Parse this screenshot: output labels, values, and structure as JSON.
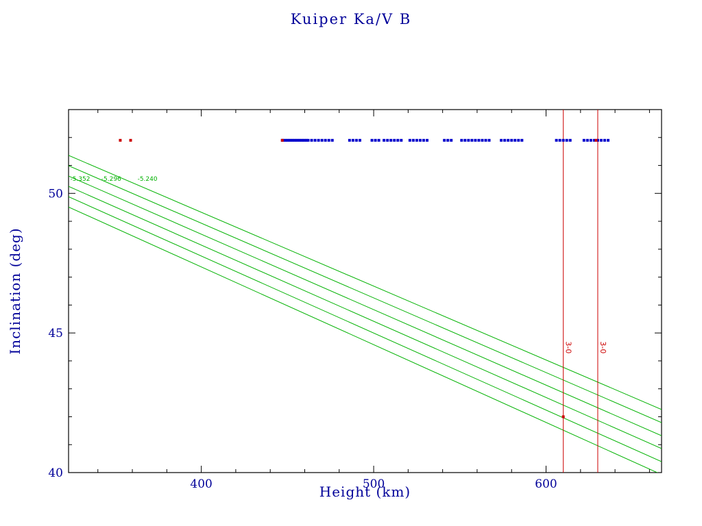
{
  "chart_data": {
    "type": "line",
    "title": "Kuiper Ka/V B",
    "xlabel": "Height (km)",
    "ylabel": "Inclination (deg)",
    "xlim": [
      323,
      667
    ],
    "ylim": [
      40,
      53
    ],
    "x_ticks": [
      400,
      500,
      600
    ],
    "y_ticks": [
      40,
      45,
      50
    ],
    "x_minor_step": 20,
    "y_minor_step": 1,
    "grid": false,
    "legend": "none",
    "colors": {
      "text": "#000099",
      "axis": "#000000",
      "green": "#00b200",
      "red": "#cc0000",
      "blue": "#0000cc"
    },
    "green_lines": [
      {
        "x": [
          323,
          667
        ],
        "y": [
          51.36,
          42.26
        ]
      },
      {
        "x": [
          323,
          667
        ],
        "y": [
          50.99,
          41.79
        ]
      },
      {
        "x": [
          323,
          667
        ],
        "y": [
          50.62,
          41.32
        ]
      },
      {
        "x": [
          323,
          667
        ],
        "y": [
          50.25,
          40.86
        ]
      },
      {
        "x": [
          323,
          667
        ],
        "y": [
          49.88,
          40.39
        ]
      },
      {
        "x": [
          323,
          667
        ],
        "y": [
          49.51,
          39.93
        ]
      }
    ],
    "line_labels": [
      {
        "text": "-5.352",
        "x": 324,
        "y": 50.45
      },
      {
        "text": "-5.296",
        "x": 342,
        "y": 50.45
      },
      {
        "text": "-5.240",
        "x": 363,
        "y": 50.45
      }
    ],
    "vertical_lines": [
      {
        "x": 610,
        "label": "3-0",
        "label_y": 44.7
      },
      {
        "x": 630,
        "label": "3-0",
        "label_y": 44.7
      }
    ],
    "scatter": {
      "marker": "square",
      "blue_y": 51.9,
      "blue_x": [
        447,
        448,
        449,
        450,
        451,
        452,
        453,
        454,
        455,
        456,
        457,
        458,
        459,
        460,
        461,
        462,
        464,
        466,
        468,
        470,
        472,
        474,
        476,
        486,
        488,
        490,
        492,
        499,
        501,
        503,
        506,
        508,
        510,
        512,
        514,
        516,
        521,
        523,
        525,
        527,
        529,
        531,
        541,
        543,
        545,
        551,
        553,
        555,
        557,
        559,
        561,
        563,
        565,
        567,
        574,
        576,
        578,
        580,
        582,
        584,
        586,
        606,
        608,
        610,
        612,
        614,
        622,
        624,
        626,
        628,
        630,
        632,
        634,
        636
      ],
      "red_points": [
        [
          353,
          51.9
        ],
        [
          359,
          51.9
        ],
        [
          447,
          51.9
        ],
        [
          629,
          51.9
        ],
        [
          610,
          42.0
        ]
      ]
    }
  }
}
